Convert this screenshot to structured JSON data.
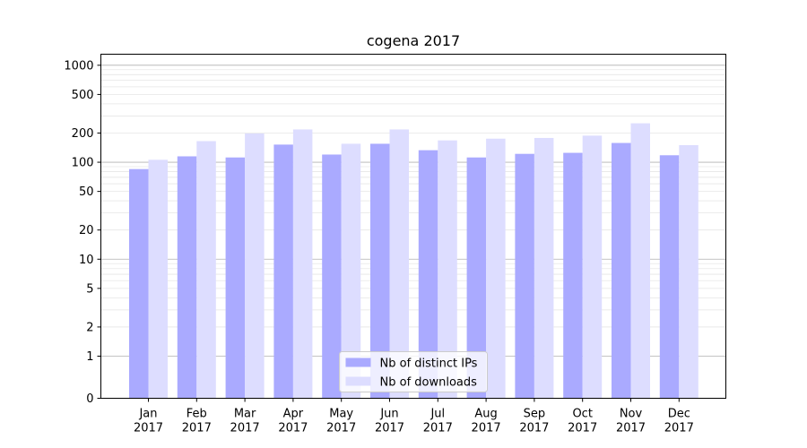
{
  "chart_data": {
    "type": "bar",
    "title": "cogena 2017",
    "xlabel": "",
    "ylabel": "",
    "yscale": "symlog",
    "ylim": [
      0,
      1300
    ],
    "yticks": [
      0,
      1,
      2,
      5,
      10,
      20,
      50,
      100,
      200,
      500,
      1000
    ],
    "ytick_labels": [
      "0",
      "1",
      "2",
      "5",
      "10",
      "20",
      "50",
      "100",
      "200",
      "500",
      "1000"
    ],
    "grid": "horizontal",
    "legend_position": "bottom-center",
    "categories": [
      {
        "month": "Jan",
        "year": "2017"
      },
      {
        "month": "Feb",
        "year": "2017"
      },
      {
        "month": "Mar",
        "year": "2017"
      },
      {
        "month": "Apr",
        "year": "2017"
      },
      {
        "month": "May",
        "year": "2017"
      },
      {
        "month": "Jun",
        "year": "2017"
      },
      {
        "month": "Jul",
        "year": "2017"
      },
      {
        "month": "Aug",
        "year": "2017"
      },
      {
        "month": "Sep",
        "year": "2017"
      },
      {
        "month": "Oct",
        "year": "2017"
      },
      {
        "month": "Nov",
        "year": "2017"
      },
      {
        "month": "Dec",
        "year": "2017"
      }
    ],
    "series": [
      {
        "name": "Nb of distinct IPs",
        "color": "#aaaaff",
        "values": [
          85,
          115,
          112,
          152,
          120,
          155,
          133,
          112,
          122,
          125,
          158,
          118
        ]
      },
      {
        "name": "Nb of downloads",
        "color": "#ddddff",
        "values": [
          106,
          165,
          198,
          218,
          155,
          218,
          168,
          175,
          178,
          188,
          252,
          150
        ]
      }
    ]
  }
}
